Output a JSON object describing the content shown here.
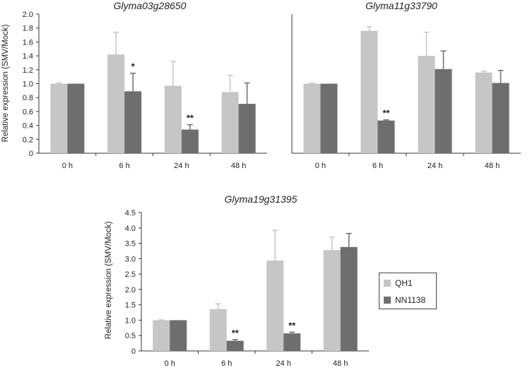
{
  "colors": {
    "QH1": "#c6c6c6",
    "NN1138": "#6e6e6e",
    "axis": "#333333"
  },
  "legend": [
    {
      "name": "QH1",
      "color": "#c6c6c6"
    },
    {
      "name": "NN1138",
      "color": "#6e6e6e"
    }
  ],
  "chart_data": [
    {
      "type": "bar",
      "title": "Glyma03g28650",
      "ylabel": "Relative expression (SMV/Mock)",
      "categories": [
        "0 h",
        "6 h",
        "24 h",
        "48 h"
      ],
      "ylim": [
        0,
        2.0
      ],
      "yticks": [
        "0",
        "0.2",
        "0.4",
        "0.6",
        "0.8",
        "1.0",
        "1.2",
        "1.4",
        "1.6",
        "1.8",
        "2.0"
      ],
      "series": [
        {
          "name": "QH1",
          "values": [
            1.0,
            1.42,
            0.97,
            0.88
          ],
          "errors": [
            0.01,
            0.32,
            0.35,
            0.24
          ]
        },
        {
          "name": "NN1138",
          "values": [
            1.0,
            0.89,
            0.34,
            0.71
          ],
          "errors": [
            0.0,
            0.26,
            0.07,
            0.3
          ]
        }
      ],
      "annotations": [
        {
          "category": "6 h",
          "series": "NN1138",
          "text": "*"
        },
        {
          "category": "24 h",
          "series": "NN1138",
          "text": "**"
        }
      ]
    },
    {
      "type": "bar",
      "title": "Glyma11g33790",
      "ylabel": "",
      "categories": [
        "0 h",
        "6 h",
        "24 h",
        "48 h"
      ],
      "ylim": [
        0,
        2.0
      ],
      "yticks": [],
      "series": [
        {
          "name": "QH1",
          "values": [
            1.0,
            1.76,
            1.4,
            1.16
          ],
          "errors": [
            0.01,
            0.06,
            0.34,
            0.02
          ]
        },
        {
          "name": "NN1138",
          "values": [
            1.0,
            0.47,
            1.21,
            1.01
          ],
          "errors": [
            0.0,
            0.01,
            0.26,
            0.18
          ]
        }
      ],
      "annotations": [
        {
          "category": "6 h",
          "series": "NN1138",
          "text": "**"
        }
      ]
    },
    {
      "type": "bar",
      "title": "Glyma19g31395",
      "ylabel": "Relative expression (SMV/Mock)",
      "categories": [
        "0 h",
        "6 h",
        "24 h",
        "48 h"
      ],
      "ylim": [
        0,
        4.5
      ],
      "yticks": [
        "0",
        "0.5",
        "1.0",
        "1.5",
        "2.0",
        "2.5",
        "3.0",
        "3.5",
        "4.0",
        "4.5"
      ],
      "series": [
        {
          "name": "QH1",
          "values": [
            1.0,
            1.36,
            2.94,
            3.28
          ],
          "errors": [
            0.01,
            0.17,
            0.98,
            0.42
          ]
        },
        {
          "name": "NN1138",
          "values": [
            1.0,
            0.33,
            0.57,
            3.38
          ],
          "errors": [
            0.0,
            0.04,
            0.04,
            0.44
          ]
        }
      ],
      "annotations": [
        {
          "category": "6 h",
          "series": "NN1138",
          "text": "**"
        },
        {
          "category": "24 h",
          "series": "NN1138",
          "text": "**"
        }
      ]
    }
  ]
}
